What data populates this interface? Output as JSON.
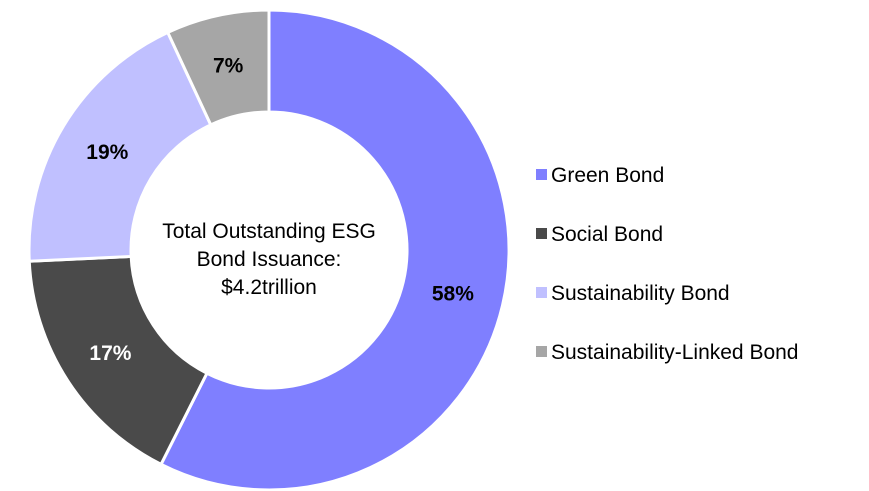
{
  "chart_data": {
    "type": "pie",
    "variant": "donut",
    "center_label": [
      "Total Outstanding ESG",
      "Bond Issuance:",
      "$4.2trillion"
    ],
    "categories": [
      "Green Bond",
      "Social Bond",
      "Sustainability Bond",
      "Sustainability-Linked Bond"
    ],
    "values": [
      58,
      17,
      19,
      7
    ],
    "value_labels": [
      "58%",
      "17%",
      "19%",
      "7%"
    ],
    "colors": [
      "#7f7fff",
      "#4a4a4a",
      "#c0c0ff",
      "#a6a6a6"
    ],
    "label_colors": [
      "#000000",
      "#ffffff",
      "#000000",
      "#000000"
    ],
    "legend_position": "right"
  }
}
